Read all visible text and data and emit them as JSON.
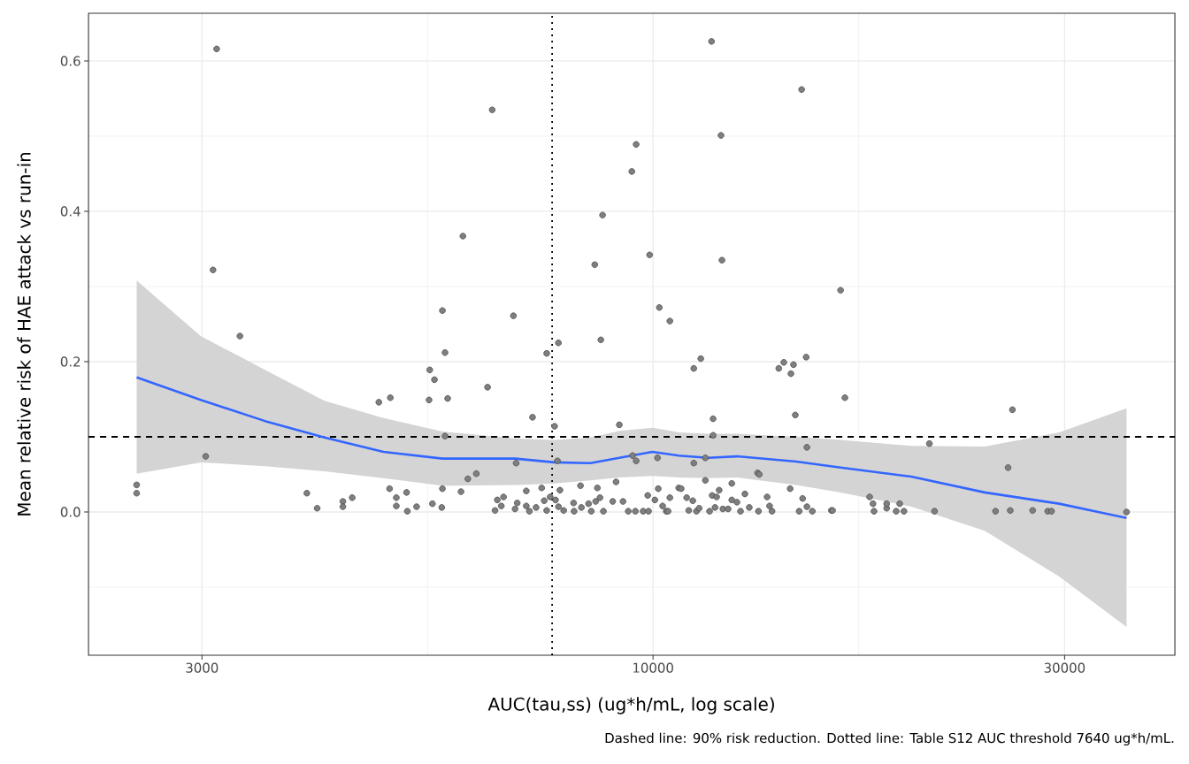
{
  "chart_data": {
    "type": "scatter",
    "xlabel": "AUC(tau,ss) (ug*h/mL, log scale)",
    "ylabel": "Mean relative risk of HAE attack vs run-in",
    "annotations": [
      "Dashed line: 90% risk reduction. Dotted line: Table S12 AUC threshold 7640 ug*h/mL."
    ],
    "log": "x",
    "grid": true,
    "xlim": [
      2216,
      40270
    ],
    "ylim": [
      -0.1906,
      0.6635
    ],
    "xticks": [
      3000,
      10000,
      30000
    ],
    "yticks": [
      {
        "value": 0,
        "label": "0.0"
      },
      {
        "value": 0.2,
        "label": "0.2"
      },
      {
        "value": 0.4,
        "label": "0.4"
      },
      {
        "value": 0.6,
        "label": "0.6"
      }
    ],
    "ref_lines": [
      {
        "axis": "y",
        "value": 0.1,
        "line_style": "dashed",
        "color": "#000000"
      },
      {
        "axis": "x",
        "value": 7640,
        "line_style": "dotted",
        "color": "#000000"
      }
    ],
    "series": [
      {
        "color": "#7f7f7f",
        "marker": "circle",
        "x": [
          2520,
          2520,
          3030,
          3090,
          3120,
          3320,
          3970,
          4080,
          4370,
          4370,
          4480,
          4810,
          4950,
          4960,
          5040,
          5040,
          5180,
          5190,
          5320,
          5500,
          5510,
          5550,
          5580,
          5700,
          5690,
          5700,
          5740,
          5740,
          5780,
          5990,
          6020,
          6100,
          6240,
          6430,
          6510,
          6560,
          6600,
          6670,
          6710,
          6890,
          6920,
          6940,
          6960,
          7130,
          7130,
          7190,
          7250,
          7320,
          7430,
          7480,
          7530,
          7530,
          7600,
          7690,
          7710,
          7750,
          7770,
          7770,
          7800,
          7880,
          8090,
          8100,
          8240,
          8260,
          8420,
          8480,
          8560,
          8580,
          8620,
          8680,
          8700,
          8740,
          8760,
          8980,
          9060,
          9140,
          9230,
          9360,
          9450,
          9470,
          9540,
          9560,
          9560,
          9740,
          9860,
          9880,
          9910,
          10050,
          10120,
          10140,
          10170,
          10260,
          10360,
          10410,
          10460,
          10460,
          10710,
          10780,
          10940,
          11000,
          11120,
          11150,
          11150,
          11230,
          11310,
          11360,
          11500,
          11500,
          11630,
          11690,
          11710,
          11740,
          11740,
          11800,
          11850,
          11930,
          11990,
          12020,
          12050,
          12220,
          12340,
          12340,
          12510,
          12630,
          12780,
          12930,
          13220,
          13250,
          13280,
          13560,
          13650,
          13740,
          13990,
          14180,
          14420,
          14450,
          14550,
          14620,
          14770,
          14870,
          14910,
          15050,
          15080,
          15080,
          15300,
          16100,
          16150,
          16500,
          16690,
          17830,
          17990,
          18040,
          18660,
          18660,
          19140,
          19320,
          19540,
          20910,
          21200,
          24950,
          25800,
          25950,
          26100,
          27550,
          28680,
          28970,
          35400
        ],
        "values": [
          0.036,
          0.025,
          0.074,
          0.322,
          0.616,
          0.234,
          0.025,
          0.005,
          0.014,
          0.007,
          0.019,
          0.146,
          0.031,
          0.152,
          0.019,
          0.008,
          0.026,
          0.001,
          0.007,
          0.149,
          0.189,
          0.011,
          0.176,
          0.268,
          0.006,
          0.031,
          0.101,
          0.212,
          0.151,
          0.027,
          0.367,
          0.044,
          0.051,
          0.166,
          0.535,
          0.002,
          0.016,
          0.008,
          0.02,
          0.261,
          0.004,
          0.065,
          0.012,
          0.028,
          0.008,
          0.001,
          0.126,
          0.006,
          0.032,
          0.015,
          0.211,
          0.002,
          0.02,
          0.114,
          0.016,
          0.068,
          0.225,
          0.007,
          0.029,
          0.002,
          0.012,
          0.001,
          0.035,
          0.006,
          0.011,
          0.001,
          0.329,
          0.014,
          0.032,
          0.019,
          0.229,
          0.395,
          0.001,
          0.014,
          0.04,
          0.116,
          0.014,
          0.001,
          0.453,
          0.075,
          0.001,
          0.489,
          0.068,
          0.001,
          0.022,
          0.001,
          0.342,
          0.016,
          0.072,
          0.031,
          0.272,
          0.008,
          0.001,
          0.001,
          0.254,
          0.019,
          0.032,
          0.031,
          0.019,
          0.002,
          0.015,
          0.191,
          0.065,
          0.001,
          0.005,
          0.204,
          0.072,
          0.042,
          0.001,
          0.626,
          0.022,
          0.124,
          0.102,
          0.006,
          0.02,
          0.029,
          0.501,
          0.335,
          0.004,
          0.004,
          0.038,
          0.016,
          0.013,
          0.001,
          0.024,
          0.006,
          0.052,
          0.001,
          0.05,
          0.02,
          0.008,
          0.001,
          0.191,
          0.199,
          0.031,
          0.184,
          0.196,
          0.129,
          0.001,
          0.562,
          0.018,
          0.206,
          0.086,
          0.007,
          0.001,
          0.002,
          0.002,
          0.295,
          0.152,
          0.02,
          0.011,
          0.001,
          0.005,
          0.011,
          0.001,
          0.011,
          0.001,
          0.091,
          0.001,
          0.001,
          0.059,
          0.002,
          0.136,
          0.002,
          0.001,
          0.001,
          0.0
        ]
      },
      {
        "type": "line",
        "color": "#3366ff",
        "marker": "none",
        "x": [
          2520,
          2990,
          3550,
          4160,
          4870,
          5700,
          6920,
          7690,
          8460,
          9140,
          9980,
          10710,
          11580,
          12510,
          14660,
          16500,
          19930,
          24240,
          29570,
          35400
        ],
        "values": [
          0.179,
          0.149,
          0.121,
          0.099,
          0.08,
          0.071,
          0.071,
          0.066,
          0.065,
          0.072,
          0.08,
          0.075,
          0.072,
          0.074,
          0.067,
          0.059,
          0.047,
          0.026,
          0.011,
          -0.008
        ],
        "lower": [
          0.051,
          0.066,
          0.061,
          0.054,
          0.045,
          0.035,
          0.036,
          0.038,
          0.042,
          0.046,
          0.048,
          0.046,
          0.045,
          0.046,
          0.036,
          0.026,
          0.007,
          -0.025,
          -0.086,
          -0.153
        ],
        "upper": [
          0.308,
          0.234,
          0.189,
          0.148,
          0.125,
          0.107,
          0.098,
          0.096,
          0.099,
          0.108,
          0.112,
          0.106,
          0.104,
          0.104,
          0.1,
          0.096,
          0.088,
          0.087,
          0.106,
          0.138
        ]
      }
    ]
  }
}
